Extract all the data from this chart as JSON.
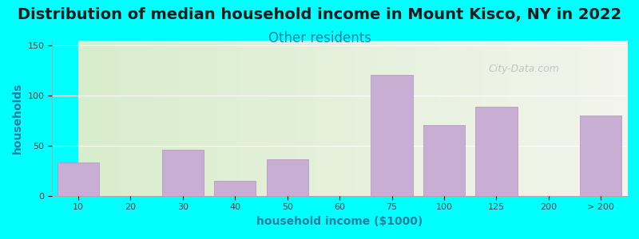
{
  "title": "Distribution of median household income in Mount Kisco, NY in 2022",
  "subtitle": "Other residents",
  "xlabel": "household income ($1000)",
  "ylabel": "households",
  "background_color": "#00FFFF",
  "plot_bg_colors": [
    "#d8edcc",
    "#f0f0e8"
  ],
  "bar_color": "#c9aed4",
  "bar_edge_color": "#b090be",
  "categories": [
    "10",
    "20",
    "30",
    "40",
    "50",
    "60",
    "75",
    "100",
    "125",
    "200",
    "> 200"
  ],
  "values": [
    33,
    0,
    46,
    15,
    36,
    0,
    121,
    71,
    89,
    0,
    80
  ],
  "ylim": [
    0,
    155
  ],
  "yticks": [
    0,
    50,
    100,
    150
  ],
  "watermark": "City-Data.com",
  "title_fontsize": 14,
  "subtitle_fontsize": 12,
  "subtitle_color": "#2080a0",
  "axis_label_fontsize": 10,
  "axis_color": "#2080a0"
}
